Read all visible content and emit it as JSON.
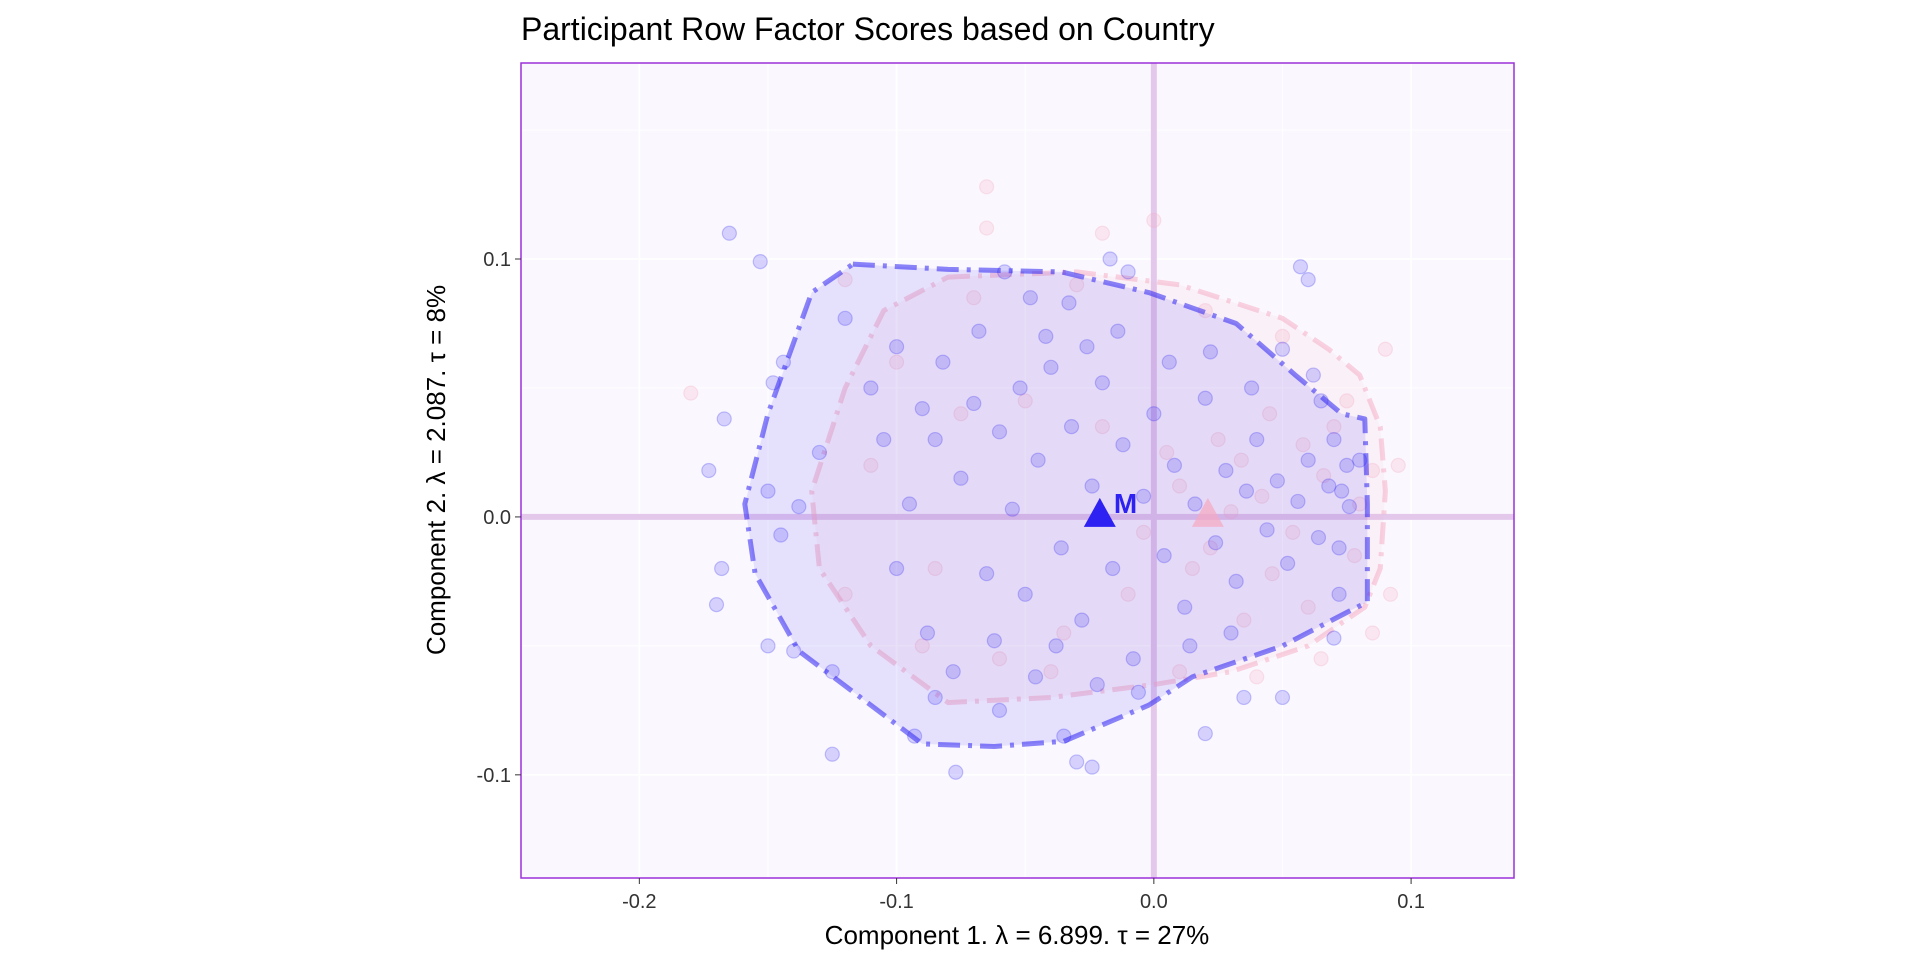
{
  "chart_data": {
    "type": "scatter",
    "title": "Participant Row Factor Scores based on Country",
    "xlabel": "Component 1.   λ = 6.899.  τ = 27%",
    "ylabel": "Component 2.   λ = 2.087.  τ = 8%",
    "xlim": [
      -0.246,
      0.14
    ],
    "ylim": [
      -0.14,
      0.176
    ],
    "xticks": [
      -0.2,
      -0.1,
      0.0,
      0.1
    ],
    "xtick_labels": [
      "-0.2",
      "-0.1",
      "0.0",
      "0.1"
    ],
    "yticks": [
      -0.1,
      0.0,
      0.1
    ],
    "ytick_labels": [
      "-0.1",
      "0.0",
      "0.1"
    ],
    "grid": true,
    "legend": "none",
    "colors": {
      "panel_bg": "#faf8fe",
      "panel_border": "#9b30d9",
      "axis_lines": "#e3c8ec",
      "group_blue": "#2d22f2",
      "group_pink": "#f6a8c0"
    },
    "series": [
      {
        "color": "#2d22f2",
        "centroid": {
          "x": -0.021,
          "y": 0.0,
          "label": "M"
        },
        "hull": [
          [
            -0.117,
            0.098
          ],
          [
            -0.08,
            0.096
          ],
          [
            -0.036,
            0.095
          ],
          [
            -0.002,
            0.087
          ],
          [
            0.032,
            0.075
          ],
          [
            0.055,
            0.055
          ],
          [
            0.073,
            0.04
          ],
          [
            0.082,
            0.038
          ],
          [
            0.083,
            0.005
          ],
          [
            0.083,
            -0.033
          ],
          [
            0.077,
            -0.036
          ],
          [
            0.05,
            -0.05
          ],
          [
            0.015,
            -0.062
          ],
          [
            -0.002,
            -0.073
          ],
          [
            -0.035,
            -0.087
          ],
          [
            -0.062,
            -0.089
          ],
          [
            -0.09,
            -0.088
          ],
          [
            -0.138,
            -0.052
          ],
          [
            -0.155,
            -0.022
          ],
          [
            -0.159,
            0.005
          ],
          [
            -0.15,
            0.04
          ],
          [
            -0.133,
            0.087
          ]
        ],
        "points": [
          [
            -0.165,
            0.11
          ],
          [
            -0.153,
            0.099
          ],
          [
            -0.148,
            0.052
          ],
          [
            -0.144,
            0.06
          ],
          [
            -0.15,
            0.01
          ],
          [
            -0.145,
            -0.007
          ],
          [
            -0.138,
            0.004
          ],
          [
            -0.15,
            -0.05
          ],
          [
            -0.14,
            -0.052
          ],
          [
            -0.167,
            0.038
          ],
          [
            -0.173,
            0.018
          ],
          [
            -0.168,
            -0.02
          ],
          [
            -0.17,
            -0.034
          ],
          [
            -0.13,
            0.025
          ],
          [
            -0.125,
            -0.06
          ],
          [
            -0.12,
            0.077
          ],
          [
            -0.11,
            0.05
          ],
          [
            -0.105,
            0.03
          ],
          [
            -0.1,
            0.066
          ],
          [
            -0.09,
            0.042
          ],
          [
            -0.085,
            -0.07
          ],
          [
            -0.093,
            -0.085
          ],
          [
            -0.077,
            -0.099
          ],
          [
            -0.125,
            -0.092
          ],
          [
            -0.06,
            -0.075
          ],
          [
            -0.058,
            0.095
          ],
          [
            -0.048,
            0.085
          ],
          [
            -0.035,
            -0.085
          ],
          [
            -0.03,
            -0.095
          ],
          [
            -0.024,
            -0.097
          ],
          [
            -0.033,
            0.083
          ],
          [
            -0.017,
            0.1
          ],
          [
            -0.01,
            0.095
          ],
          [
            0.02,
            -0.084
          ],
          [
            0.05,
            0.065
          ],
          [
            0.057,
            0.097
          ],
          [
            0.06,
            0.092
          ],
          [
            0.062,
            0.055
          ],
          [
            0.065,
            0.045
          ],
          [
            0.07,
            0.03
          ],
          [
            0.073,
            0.01
          ],
          [
            0.072,
            -0.03
          ],
          [
            0.07,
            -0.047
          ],
          [
            0.075,
            0.02
          ],
          [
            0.08,
            0.022
          ],
          [
            0.035,
            -0.07
          ],
          [
            0.05,
            -0.07
          ],
          [
            -0.085,
            0.03
          ],
          [
            -0.075,
            0.015
          ],
          [
            -0.07,
            0.044
          ],
          [
            -0.065,
            -0.022
          ],
          [
            -0.06,
            0.033
          ],
          [
            -0.055,
            0.003
          ],
          [
            -0.05,
            -0.03
          ],
          [
            -0.045,
            0.022
          ],
          [
            -0.04,
            0.058
          ],
          [
            -0.036,
            -0.012
          ],
          [
            -0.032,
            0.035
          ],
          [
            -0.028,
            -0.04
          ],
          [
            -0.024,
            0.012
          ],
          [
            -0.02,
            0.052
          ],
          [
            -0.016,
            -0.02
          ],
          [
            -0.012,
            0.028
          ],
          [
            -0.008,
            -0.055
          ],
          [
            -0.004,
            0.008
          ],
          [
            0.0,
            0.04
          ],
          [
            0.004,
            -0.015
          ],
          [
            0.008,
            0.02
          ],
          [
            0.012,
            -0.035
          ],
          [
            0.016,
            0.005
          ],
          [
            0.02,
            0.046
          ],
          [
            0.024,
            -0.01
          ],
          [
            0.028,
            0.018
          ],
          [
            0.032,
            -0.025
          ],
          [
            0.036,
            0.01
          ],
          [
            0.04,
            0.03
          ],
          [
            0.044,
            -0.005
          ],
          [
            0.048,
            0.014
          ],
          [
            0.052,
            -0.018
          ],
          [
            0.056,
            0.006
          ],
          [
            0.06,
            0.022
          ],
          [
            0.064,
            -0.008
          ],
          [
            0.068,
            0.012
          ],
          [
            0.072,
            -0.012
          ],
          [
            0.076,
            0.004
          ],
          [
            -0.1,
            -0.02
          ],
          [
            -0.095,
            0.005
          ],
          [
            -0.088,
            -0.045
          ],
          [
            -0.082,
            0.06
          ],
          [
            -0.078,
            -0.06
          ],
          [
            -0.068,
            0.072
          ],
          [
            -0.062,
            -0.048
          ],
          [
            -0.052,
            0.05
          ],
          [
            -0.046,
            -0.062
          ],
          [
            -0.042,
            0.07
          ],
          [
            -0.038,
            -0.05
          ],
          [
            -0.026,
            0.066
          ],
          [
            -0.022,
            -0.065
          ],
          [
            -0.014,
            0.072
          ],
          [
            -0.006,
            -0.068
          ],
          [
            0.006,
            0.06
          ],
          [
            0.014,
            -0.05
          ],
          [
            0.022,
            0.064
          ],
          [
            0.03,
            -0.045
          ],
          [
            0.038,
            0.05
          ]
        ]
      },
      {
        "color": "#f6a8c0",
        "centroid": {
          "x": 0.021,
          "y": 0.0,
          "label": ""
        },
        "hull": [
          [
            -0.08,
            0.093
          ],
          [
            -0.03,
            0.095
          ],
          [
            0.01,
            0.09
          ],
          [
            0.05,
            0.077
          ],
          [
            0.068,
            0.065
          ],
          [
            0.08,
            0.055
          ],
          [
            0.088,
            0.035
          ],
          [
            0.09,
            0.01
          ],
          [
            0.088,
            -0.02
          ],
          [
            0.082,
            -0.035
          ],
          [
            0.06,
            -0.05
          ],
          [
            0.03,
            -0.06
          ],
          [
            0.0,
            -0.065
          ],
          [
            -0.04,
            -0.07
          ],
          [
            -0.08,
            -0.072
          ],
          [
            -0.11,
            -0.05
          ],
          [
            -0.13,
            -0.02
          ],
          [
            -0.133,
            0.01
          ],
          [
            -0.12,
            0.05
          ],
          [
            -0.105,
            0.08
          ]
        ],
        "points": [
          [
            -0.18,
            0.048
          ],
          [
            -0.12,
            0.092
          ],
          [
            -0.02,
            0.11
          ],
          [
            -0.065,
            0.112
          ],
          [
            0.0,
            0.115
          ],
          [
            -0.065,
            0.128
          ],
          [
            0.09,
            0.065
          ],
          [
            0.095,
            0.02
          ],
          [
            0.092,
            -0.03
          ],
          [
            0.085,
            -0.045
          ],
          [
            0.065,
            -0.055
          ],
          [
            0.04,
            -0.062
          ],
          [
            0.01,
            -0.06
          ],
          [
            -0.04,
            -0.06
          ],
          [
            -0.09,
            -0.05
          ],
          [
            -0.12,
            -0.03
          ],
          [
            -0.11,
            0.02
          ],
          [
            -0.1,
            0.06
          ],
          [
            -0.07,
            0.085
          ],
          [
            -0.03,
            0.09
          ],
          [
            0.02,
            0.08
          ],
          [
            0.05,
            0.07
          ],
          [
            0.075,
            0.045
          ],
          [
            0.08,
            0.005
          ],
          [
            0.085,
            0.018
          ],
          [
            0.078,
            -0.015
          ],
          [
            0.07,
            0.035
          ],
          [
            0.06,
            -0.035
          ],
          [
            0.045,
            0.04
          ],
          [
            0.035,
            -0.04
          ],
          [
            0.025,
            0.03
          ],
          [
            0.015,
            -0.02
          ],
          [
            0.005,
            0.025
          ],
          [
            -0.01,
            -0.03
          ],
          [
            -0.02,
            0.035
          ],
          [
            -0.035,
            -0.045
          ],
          [
            -0.05,
            0.045
          ],
          [
            -0.06,
            -0.055
          ],
          [
            -0.075,
            0.04
          ],
          [
            -0.085,
            -0.02
          ],
          [
            0.03,
            0.002
          ],
          [
            0.042,
            0.008
          ],
          [
            0.054,
            -0.006
          ],
          [
            0.066,
            0.016
          ],
          [
            0.058,
            0.028
          ],
          [
            0.046,
            -0.022
          ],
          [
            0.034,
            0.022
          ],
          [
            0.022,
            -0.012
          ],
          [
            0.01,
            0.012
          ],
          [
            -0.004,
            -0.006
          ]
        ]
      }
    ]
  }
}
